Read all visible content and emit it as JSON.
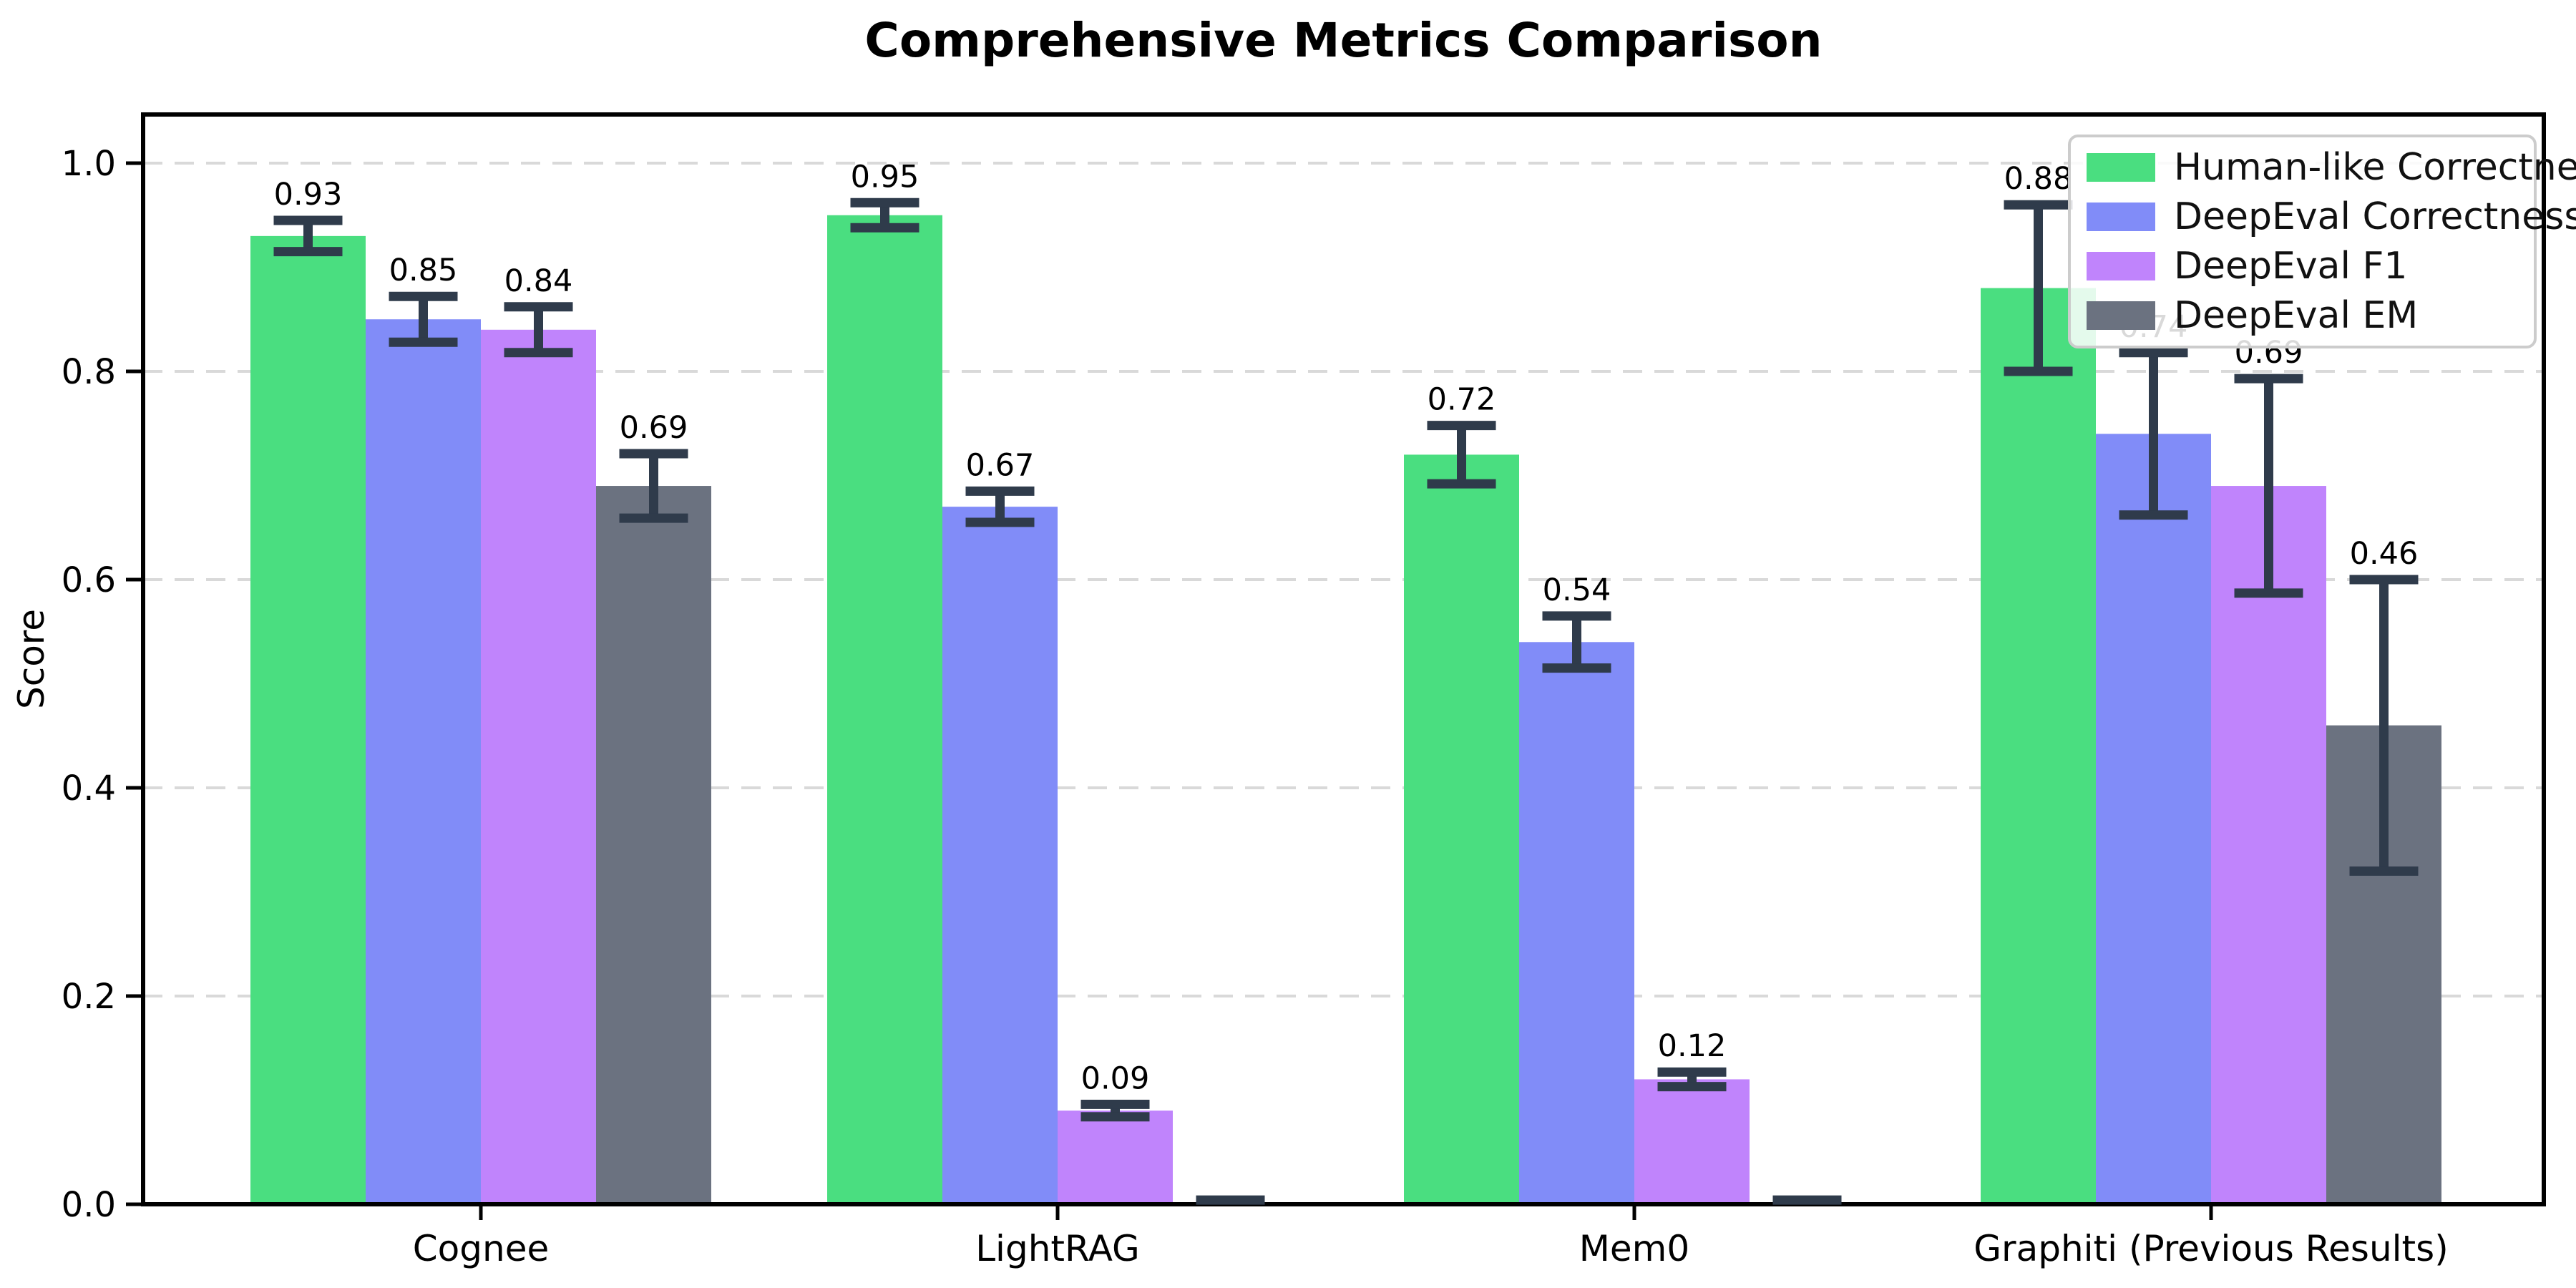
{
  "chart_data": {
    "type": "bar",
    "title": "Comprehensive Metrics Comparison",
    "ylabel": "Score",
    "xlabel": "",
    "ylim": [
      0,
      1.047
    ],
    "yticks": [
      0.0,
      0.2,
      0.4,
      0.6,
      0.8,
      1.0
    ],
    "ytick_labels": [
      "0.0",
      "0.2",
      "0.4",
      "0.6",
      "0.8",
      "1.0"
    ],
    "grid": "horizontal dashed",
    "grid_color": "#d9d9d9",
    "axis_color": "#000000",
    "errorbar_color": "#2f3b4b",
    "legend_position": "upper right",
    "categories": [
      "Cognee",
      "LightRAG",
      "Mem0",
      "Graphiti (Previous Results)"
    ],
    "series": [
      {
        "name": "Human-like Correctness",
        "color": "#4ade80",
        "values": [
          0.93,
          0.95,
          0.72,
          0.88
        ],
        "errors": [
          0.015,
          0.012,
          0.028,
          0.08
        ],
        "labels": [
          "0.93",
          "0.95",
          "0.72",
          "0.88"
        ]
      },
      {
        "name": "DeepEval Correctness",
        "color": "#818cf8",
        "values": [
          0.85,
          0.67,
          0.54,
          0.74
        ],
        "errors": [
          0.022,
          0.015,
          0.025,
          0.078
        ],
        "labels": [
          "0.85",
          "0.67",
          "0.54",
          "0.74"
        ]
      },
      {
        "name": "DeepEval F1",
        "color": "#c084fc",
        "values": [
          0.84,
          0.09,
          0.12,
          0.69
        ],
        "errors": [
          0.022,
          0.006,
          0.007,
          0.103
        ],
        "labels": [
          "0.84",
          "0.09",
          "0.12",
          "0.69"
        ]
      },
      {
        "name": "DeepEval EM",
        "color": "#6b7280",
        "values": [
          0.69,
          0.0,
          0.0,
          0.46
        ],
        "errors": [
          0.031,
          0.004,
          0.004,
          0.14
        ],
        "labels": [
          "0.69",
          "",
          "",
          "0.46"
        ]
      }
    ]
  }
}
